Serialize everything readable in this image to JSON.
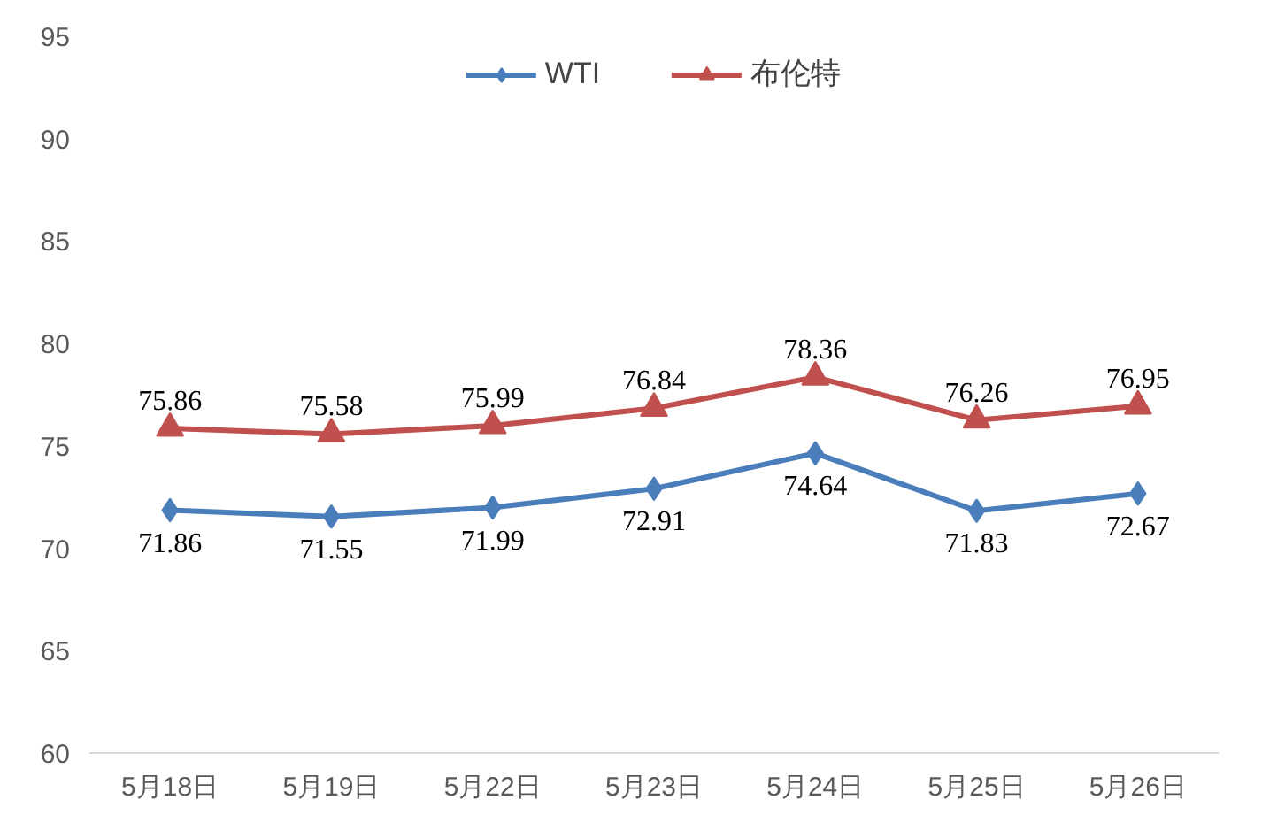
{
  "chart_data": {
    "type": "line",
    "categories": [
      "5月18日",
      "5月19日",
      "5月22日",
      "5月23日",
      "5月24日",
      "5月25日",
      "5月26日"
    ],
    "series": [
      {
        "name": "WTI",
        "color": "#4a7ebb",
        "marker": "diamond",
        "values": [
          71.86,
          71.55,
          71.99,
          72.91,
          74.64,
          71.83,
          72.67
        ]
      },
      {
        "name": "布伦特",
        "color": "#c0504d",
        "marker": "triangle",
        "values": [
          75.86,
          75.58,
          75.99,
          76.84,
          78.36,
          76.26,
          76.95
        ]
      }
    ],
    "ylim": [
      60,
      95
    ],
    "yticks": [
      60,
      65,
      70,
      75,
      80,
      85,
      90,
      95
    ],
    "grid": false,
    "legend": "top",
    "data_labels": true
  }
}
